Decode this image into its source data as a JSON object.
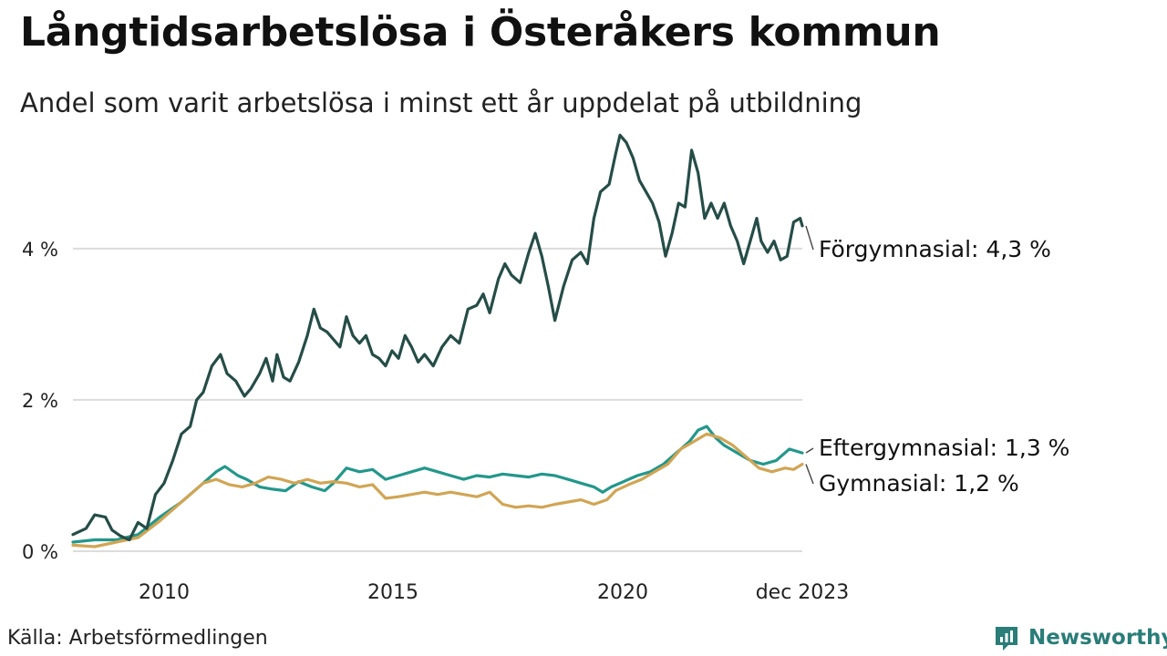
{
  "header": {
    "title": "Långtidsarbetslösa i Österåkers kommun",
    "subtitle": "Andel som varit arbetslösa i minst ett år uppdelat på utbildning"
  },
  "footer": {
    "source": "Källa: Arbetsförmedlingen",
    "brand": "Newsworthy"
  },
  "colors": {
    "forgymnasial": "#254d47",
    "eftergymnasial": "#23978b",
    "gymnasial": "#d1a554",
    "grid": "#dcdcdc",
    "brand": "#2a7d78"
  },
  "chart_data": {
    "type": "line",
    "x_start": 2008.0,
    "x_end": 2023.917,
    "x_ticks": [
      {
        "value": 2010,
        "label": "2010"
      },
      {
        "value": 2015,
        "label": "2015"
      },
      {
        "value": 2020,
        "label": "2020"
      },
      {
        "value": 2023.917,
        "label": "dec 2023"
      }
    ],
    "y_ticks": [
      {
        "value": 0,
        "label": "0 %"
      },
      {
        "value": 2,
        "label": "2 %"
      },
      {
        "value": 4,
        "label": "4 %"
      }
    ],
    "ylim": [
      0,
      5.6
    ],
    "series": [
      {
        "name": "Förgymnasial",
        "label": "Förgymnasial: 4,3 %",
        "color": "#254d47",
        "points": [
          [
            2008.0,
            0.22
          ],
          [
            2008.3,
            0.3
          ],
          [
            2008.5,
            0.48
          ],
          [
            2008.75,
            0.45
          ],
          [
            2008.9,
            0.28
          ],
          [
            2009.1,
            0.2
          ],
          [
            2009.3,
            0.15
          ],
          [
            2009.5,
            0.38
          ],
          [
            2009.7,
            0.3
          ],
          [
            2009.9,
            0.75
          ],
          [
            2010.1,
            0.9
          ],
          [
            2010.3,
            1.2
          ],
          [
            2010.5,
            1.55
          ],
          [
            2010.7,
            1.65
          ],
          [
            2010.85,
            2.0
          ],
          [
            2011.0,
            2.1
          ],
          [
            2011.2,
            2.45
          ],
          [
            2011.4,
            2.6
          ],
          [
            2011.55,
            2.35
          ],
          [
            2011.75,
            2.25
          ],
          [
            2011.95,
            2.05
          ],
          [
            2012.1,
            2.15
          ],
          [
            2012.3,
            2.35
          ],
          [
            2012.45,
            2.55
          ],
          [
            2012.6,
            2.25
          ],
          [
            2012.7,
            2.6
          ],
          [
            2012.85,
            2.3
          ],
          [
            2013.0,
            2.25
          ],
          [
            2013.2,
            2.5
          ],
          [
            2013.4,
            2.85
          ],
          [
            2013.55,
            3.2
          ],
          [
            2013.7,
            2.95
          ],
          [
            2013.85,
            2.9
          ],
          [
            2014.0,
            2.8
          ],
          [
            2014.15,
            2.7
          ],
          [
            2014.3,
            3.1
          ],
          [
            2014.45,
            2.85
          ],
          [
            2014.6,
            2.75
          ],
          [
            2014.75,
            2.85
          ],
          [
            2014.9,
            2.6
          ],
          [
            2015.05,
            2.55
          ],
          [
            2015.2,
            2.45
          ],
          [
            2015.35,
            2.65
          ],
          [
            2015.5,
            2.55
          ],
          [
            2015.65,
            2.85
          ],
          [
            2015.8,
            2.7
          ],
          [
            2015.95,
            2.5
          ],
          [
            2016.1,
            2.6
          ],
          [
            2016.3,
            2.45
          ],
          [
            2016.5,
            2.7
          ],
          [
            2016.7,
            2.85
          ],
          [
            2016.9,
            2.75
          ],
          [
            2017.1,
            3.2
          ],
          [
            2017.3,
            3.25
          ],
          [
            2017.45,
            3.4
          ],
          [
            2017.6,
            3.15
          ],
          [
            2017.8,
            3.6
          ],
          [
            2017.95,
            3.8
          ],
          [
            2018.1,
            3.65
          ],
          [
            2018.3,
            3.55
          ],
          [
            2018.5,
            3.95
          ],
          [
            2018.65,
            4.2
          ],
          [
            2018.8,
            3.9
          ],
          [
            2018.95,
            3.5
          ],
          [
            2019.1,
            3.05
          ],
          [
            2019.3,
            3.5
          ],
          [
            2019.5,
            3.85
          ],
          [
            2019.7,
            3.95
          ],
          [
            2019.85,
            3.8
          ],
          [
            2020.0,
            4.4
          ],
          [
            2020.15,
            4.75
          ],
          [
            2020.35,
            4.85
          ],
          [
            2020.5,
            5.25
          ],
          [
            2020.6,
            5.5
          ],
          [
            2020.75,
            5.4
          ],
          [
            2020.9,
            5.2
          ],
          [
            2021.05,
            4.9
          ],
          [
            2021.2,
            4.75
          ],
          [
            2021.35,
            4.6
          ],
          [
            2021.5,
            4.35
          ],
          [
            2021.65,
            3.9
          ],
          [
            2021.8,
            4.2
          ],
          [
            2021.95,
            4.6
          ],
          [
            2022.1,
            4.55
          ],
          [
            2022.25,
            5.3
          ],
          [
            2022.4,
            5.0
          ],
          [
            2022.55,
            4.4
          ],
          [
            2022.7,
            4.6
          ],
          [
            2022.85,
            4.4
          ],
          [
            2023.0,
            4.6
          ],
          [
            2023.15,
            4.3
          ],
          [
            2023.3,
            4.1
          ],
          [
            2023.45,
            3.8
          ],
          [
            2023.6,
            4.1
          ],
          [
            2023.75,
            4.4
          ],
          [
            2023.85,
            4.1
          ],
          [
            2024.0,
            3.95
          ],
          [
            2024.15,
            4.1
          ],
          [
            2024.3,
            3.85
          ],
          [
            2024.45,
            3.9
          ],
          [
            2024.6,
            4.35
          ],
          [
            2024.75,
            4.4
          ],
          [
            2024.8,
            4.3
          ]
        ]
      },
      {
        "name": "Eftergymnasial",
        "label": "Eftergymnasial: 1,3 %",
        "color": "#23978b",
        "points": [
          [
            2008.0,
            0.12
          ],
          [
            2008.5,
            0.15
          ],
          [
            2009.0,
            0.15
          ],
          [
            2009.5,
            0.22
          ],
          [
            2010.0,
            0.45
          ],
          [
            2010.5,
            0.65
          ],
          [
            2011.0,
            0.9
          ],
          [
            2011.3,
            1.05
          ],
          [
            2011.5,
            1.12
          ],
          [
            2011.8,
            1.0
          ],
          [
            2012.0,
            0.95
          ],
          [
            2012.3,
            0.85
          ],
          [
            2012.6,
            0.82
          ],
          [
            2012.9,
            0.8
          ],
          [
            2013.2,
            0.92
          ],
          [
            2013.5,
            0.85
          ],
          [
            2013.8,
            0.8
          ],
          [
            2014.0,
            0.9
          ],
          [
            2014.3,
            1.1
          ],
          [
            2014.6,
            1.05
          ],
          [
            2014.9,
            1.08
          ],
          [
            2015.2,
            0.95
          ],
          [
            2015.5,
            1.0
          ],
          [
            2015.8,
            1.05
          ],
          [
            2016.1,
            1.1
          ],
          [
            2016.4,
            1.05
          ],
          [
            2016.7,
            1.0
          ],
          [
            2017.0,
            0.95
          ],
          [
            2017.3,
            1.0
          ],
          [
            2017.6,
            0.98
          ],
          [
            2017.9,
            1.02
          ],
          [
            2018.2,
            1.0
          ],
          [
            2018.5,
            0.98
          ],
          [
            2018.8,
            1.02
          ],
          [
            2019.1,
            1.0
          ],
          [
            2019.4,
            0.95
          ],
          [
            2019.7,
            0.9
          ],
          [
            2020.0,
            0.85
          ],
          [
            2020.2,
            0.78
          ],
          [
            2020.4,
            0.85
          ],
          [
            2020.6,
            0.9
          ],
          [
            2020.8,
            0.95
          ],
          [
            2021.0,
            1.0
          ],
          [
            2021.3,
            1.05
          ],
          [
            2021.6,
            1.15
          ],
          [
            2021.9,
            1.3
          ],
          [
            2022.2,
            1.45
          ],
          [
            2022.4,
            1.6
          ],
          [
            2022.6,
            1.65
          ],
          [
            2022.8,
            1.5
          ],
          [
            2023.0,
            1.4
          ],
          [
            2023.3,
            1.3
          ],
          [
            2023.6,
            1.2
          ],
          [
            2023.9,
            1.15
          ],
          [
            2024.2,
            1.2
          ],
          [
            2024.5,
            1.35
          ],
          [
            2024.8,
            1.3
          ]
        ]
      },
      {
        "name": "Gymnasial",
        "label": "Gymnasial: 1,2 %",
        "color": "#d1a554",
        "points": [
          [
            2008.0,
            0.08
          ],
          [
            2008.5,
            0.06
          ],
          [
            2009.0,
            0.12
          ],
          [
            2009.5,
            0.18
          ],
          [
            2010.0,
            0.4
          ],
          [
            2010.5,
            0.65
          ],
          [
            2011.0,
            0.9
          ],
          [
            2011.3,
            0.95
          ],
          [
            2011.6,
            0.88
          ],
          [
            2011.9,
            0.85
          ],
          [
            2012.2,
            0.9
          ],
          [
            2012.5,
            0.98
          ],
          [
            2012.8,
            0.95
          ],
          [
            2013.1,
            0.9
          ],
          [
            2013.4,
            0.95
          ],
          [
            2013.7,
            0.9
          ],
          [
            2014.0,
            0.92
          ],
          [
            2014.3,
            0.9
          ],
          [
            2014.6,
            0.85
          ],
          [
            2014.9,
            0.88
          ],
          [
            2015.2,
            0.7
          ],
          [
            2015.5,
            0.72
          ],
          [
            2015.8,
            0.75
          ],
          [
            2016.1,
            0.78
          ],
          [
            2016.4,
            0.75
          ],
          [
            2016.7,
            0.78
          ],
          [
            2017.0,
            0.75
          ],
          [
            2017.3,
            0.72
          ],
          [
            2017.6,
            0.78
          ],
          [
            2017.9,
            0.62
          ],
          [
            2018.2,
            0.58
          ],
          [
            2018.5,
            0.6
          ],
          [
            2018.8,
            0.58
          ],
          [
            2019.1,
            0.62
          ],
          [
            2019.4,
            0.65
          ],
          [
            2019.7,
            0.68
          ],
          [
            2020.0,
            0.62
          ],
          [
            2020.3,
            0.68
          ],
          [
            2020.5,
            0.8
          ],
          [
            2020.8,
            0.88
          ],
          [
            2021.1,
            0.95
          ],
          [
            2021.4,
            1.05
          ],
          [
            2021.7,
            1.15
          ],
          [
            2022.0,
            1.35
          ],
          [
            2022.3,
            1.45
          ],
          [
            2022.6,
            1.55
          ],
          [
            2022.9,
            1.5
          ],
          [
            2023.2,
            1.4
          ],
          [
            2023.5,
            1.25
          ],
          [
            2023.8,
            1.1
          ],
          [
            2024.1,
            1.05
          ],
          [
            2024.4,
            1.1
          ],
          [
            2024.6,
            1.08
          ],
          [
            2024.8,
            1.15
          ]
        ]
      }
    ]
  }
}
